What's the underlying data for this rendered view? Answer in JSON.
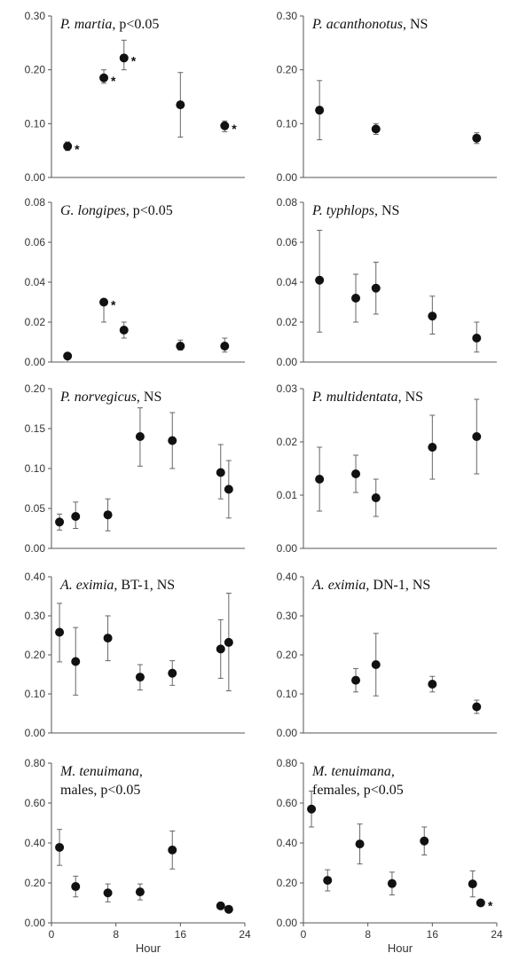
{
  "chart_data": [
    {
      "type": "scatter",
      "title_italic": "P. martia",
      "title_rest": ", p<0.05",
      "ylim": [
        0,
        0.3
      ],
      "yticks": [
        "0.00",
        "0.10",
        "0.20",
        "0.30"
      ],
      "xlim": [
        0,
        24
      ],
      "xticks": [],
      "xlabel": "",
      "points": [
        {
          "x": 2,
          "y": 0.058,
          "lo": 0.05,
          "hi": 0.066,
          "star": true
        },
        {
          "x": 6.5,
          "y": 0.185,
          "lo": 0.175,
          "hi": 0.2,
          "star": true
        },
        {
          "x": 9,
          "y": 0.222,
          "lo": 0.2,
          "hi": 0.255,
          "star": true
        },
        {
          "x": 16,
          "y": 0.135,
          "lo": 0.075,
          "hi": 0.195
        },
        {
          "x": 21.5,
          "y": 0.096,
          "lo": 0.085,
          "hi": 0.105,
          "star": true
        }
      ]
    },
    {
      "type": "scatter",
      "title_italic": "P. acanthonotus",
      "title_rest": ", NS",
      "ylim": [
        0,
        0.3
      ],
      "yticks": [
        "0.00",
        "0.10",
        "0.20",
        "0.30"
      ],
      "xlim": [
        0,
        24
      ],
      "xticks": [],
      "xlabel": "",
      "points": [
        {
          "x": 2,
          "y": 0.125,
          "lo": 0.07,
          "hi": 0.18
        },
        {
          "x": 9,
          "y": 0.09,
          "lo": 0.08,
          "hi": 0.1
        },
        {
          "x": 21.5,
          "y": 0.073,
          "lo": 0.063,
          "hi": 0.083
        }
      ]
    },
    {
      "type": "scatter",
      "title_italic": "G. longipes",
      "title_rest": ", p<0.05",
      "ylim": [
        0,
        0.08
      ],
      "yticks": [
        "0.00",
        "0.02",
        "0.04",
        "0.06",
        "0.08"
      ],
      "xlim": [
        0,
        24
      ],
      "xticks": [],
      "xlabel": "",
      "points": [
        {
          "x": 2,
          "y": 0.003,
          "lo": 0.0,
          "hi": 0.004
        },
        {
          "x": 6.5,
          "y": 0.03,
          "lo": 0.02,
          "hi": 0.031,
          "star": true
        },
        {
          "x": 9,
          "y": 0.016,
          "lo": 0.012,
          "hi": 0.02
        },
        {
          "x": 16,
          "y": 0.008,
          "lo": 0.006,
          "hi": 0.011
        },
        {
          "x": 21.5,
          "y": 0.008,
          "lo": 0.005,
          "hi": 0.012
        }
      ]
    },
    {
      "type": "scatter",
      "title_italic": "P. typhlops",
      "title_rest": ", NS",
      "ylim": [
        0,
        0.08
      ],
      "yticks": [
        "0.00",
        "0.02",
        "0.04",
        "0.06",
        "0.08"
      ],
      "xlim": [
        0,
        24
      ],
      "xticks": [],
      "xlabel": "",
      "points": [
        {
          "x": 2,
          "y": 0.041,
          "lo": 0.015,
          "hi": 0.066
        },
        {
          "x": 6.5,
          "y": 0.032,
          "lo": 0.02,
          "hi": 0.044
        },
        {
          "x": 9,
          "y": 0.037,
          "lo": 0.024,
          "hi": 0.05
        },
        {
          "x": 16,
          "y": 0.023,
          "lo": 0.014,
          "hi": 0.033
        },
        {
          "x": 21.5,
          "y": 0.012,
          "lo": 0.005,
          "hi": 0.02
        }
      ]
    },
    {
      "type": "scatter",
      "title_italic": "P. norvegicus",
      "title_rest": ", NS",
      "ylim": [
        0,
        0.2
      ],
      "yticks": [
        "0.00",
        "0.05",
        "0.10",
        "0.15",
        "0.20"
      ],
      "xlim": [
        0,
        24
      ],
      "xticks": [],
      "xlabel": "",
      "points": [
        {
          "x": 1,
          "y": 0.033,
          "lo": 0.023,
          "hi": 0.043
        },
        {
          "x": 3,
          "y": 0.04,
          "lo": 0.025,
          "hi": 0.058
        },
        {
          "x": 7,
          "y": 0.042,
          "lo": 0.022,
          "hi": 0.062
        },
        {
          "x": 11,
          "y": 0.14,
          "lo": 0.103,
          "hi": 0.176
        },
        {
          "x": 15,
          "y": 0.135,
          "lo": 0.1,
          "hi": 0.17
        },
        {
          "x": 21,
          "y": 0.095,
          "lo": 0.062,
          "hi": 0.13
        },
        {
          "x": 22,
          "y": 0.074,
          "lo": 0.038,
          "hi": 0.11
        }
      ]
    },
    {
      "type": "scatter",
      "title_italic": "P. multidentata",
      "title_rest": ", NS",
      "ylim": [
        0,
        0.03
      ],
      "yticks": [
        "0.00",
        "0.01",
        "0.02",
        "0.03"
      ],
      "xlim": [
        0,
        24
      ],
      "xticks": [],
      "xlabel": "",
      "points": [
        {
          "x": 2,
          "y": 0.013,
          "lo": 0.007,
          "hi": 0.019
        },
        {
          "x": 6.5,
          "y": 0.014,
          "lo": 0.0105,
          "hi": 0.0175
        },
        {
          "x": 9,
          "y": 0.0095,
          "lo": 0.006,
          "hi": 0.013
        },
        {
          "x": 16,
          "y": 0.019,
          "lo": 0.013,
          "hi": 0.025
        },
        {
          "x": 21.5,
          "y": 0.021,
          "lo": 0.014,
          "hi": 0.028
        }
      ]
    },
    {
      "type": "scatter",
      "title_italic": "A. eximia",
      "title_rest": ", BT-1, NS",
      "ylim": [
        0,
        0.4
      ],
      "yticks": [
        "0.00",
        "0.10",
        "0.20",
        "0.30",
        "0.40"
      ],
      "xlim": [
        0,
        24
      ],
      "xticks": [],
      "xlabel": "",
      "points": [
        {
          "x": 1,
          "y": 0.258,
          "lo": 0.182,
          "hi": 0.332
        },
        {
          "x": 3,
          "y": 0.183,
          "lo": 0.097,
          "hi": 0.27
        },
        {
          "x": 7,
          "y": 0.243,
          "lo": 0.185,
          "hi": 0.3
        },
        {
          "x": 11,
          "y": 0.143,
          "lo": 0.11,
          "hi": 0.175
        },
        {
          "x": 15,
          "y": 0.153,
          "lo": 0.122,
          "hi": 0.185
        },
        {
          "x": 21,
          "y": 0.215,
          "lo": 0.14,
          "hi": 0.29
        },
        {
          "x": 22,
          "y": 0.232,
          "lo": 0.108,
          "hi": 0.358
        }
      ]
    },
    {
      "type": "scatter",
      "title_italic": "A. eximia",
      "title_rest": ", DN-1, NS",
      "ylim": [
        0,
        0.4
      ],
      "yticks": [
        "0.00",
        "0.10",
        "0.20",
        "0.30",
        "0.40"
      ],
      "xlim": [
        0,
        24
      ],
      "xticks": [],
      "xlabel": "",
      "points": [
        {
          "x": 6.5,
          "y": 0.135,
          "lo": 0.105,
          "hi": 0.165
        },
        {
          "x": 9,
          "y": 0.175,
          "lo": 0.095,
          "hi": 0.255
        },
        {
          "x": 16,
          "y": 0.125,
          "lo": 0.105,
          "hi": 0.145
        },
        {
          "x": 21.5,
          "y": 0.067,
          "lo": 0.05,
          "hi": 0.084
        }
      ]
    },
    {
      "type": "scatter",
      "title_italic": "M. tenuimana",
      "title_rest": ",",
      "title_line2": "males, p<0.05",
      "ylim": [
        0,
        0.8
      ],
      "yticks": [
        "0.00",
        "0.20",
        "0.40",
        "0.60",
        "0.80"
      ],
      "xlim": [
        0,
        24
      ],
      "xticks": [
        "0",
        "8",
        "16",
        "24"
      ],
      "xlabel": "Hour",
      "points": [
        {
          "x": 1,
          "y": 0.378,
          "lo": 0.288,
          "hi": 0.468
        },
        {
          "x": 3,
          "y": 0.182,
          "lo": 0.13,
          "hi": 0.234
        },
        {
          "x": 7,
          "y": 0.15,
          "lo": 0.105,
          "hi": 0.195
        },
        {
          "x": 11,
          "y": 0.155,
          "lo": 0.115,
          "hi": 0.195
        },
        {
          "x": 15,
          "y": 0.365,
          "lo": 0.27,
          "hi": 0.46
        },
        {
          "x": 21,
          "y": 0.085,
          "lo": 0.07,
          "hi": 0.1
        },
        {
          "x": 22,
          "y": 0.068,
          "lo": 0.055,
          "hi": 0.081
        }
      ]
    },
    {
      "type": "scatter",
      "title_italic": "M. tenuimana",
      "title_rest": ",",
      "title_line2": "females, p<0.05",
      "ylim": [
        0,
        0.8
      ],
      "yticks": [
        "0.00",
        "0.20",
        "0.40",
        "0.60",
        "0.80"
      ],
      "xlim": [
        0,
        24
      ],
      "xticks": [
        "0",
        "8",
        "16",
        "24"
      ],
      "xlabel": "Hour",
      "points": [
        {
          "x": 1,
          "y": 0.57,
          "lo": 0.48,
          "hi": 0.66
        },
        {
          "x": 3,
          "y": 0.213,
          "lo": 0.16,
          "hi": 0.266
        },
        {
          "x": 7,
          "y": 0.395,
          "lo": 0.295,
          "hi": 0.495
        },
        {
          "x": 11,
          "y": 0.197,
          "lo": 0.14,
          "hi": 0.254
        },
        {
          "x": 15,
          "y": 0.41,
          "lo": 0.34,
          "hi": 0.48
        },
        {
          "x": 21,
          "y": 0.195,
          "lo": 0.13,
          "hi": 0.26
        },
        {
          "x": 22,
          "y": 0.1,
          "lo": 0.085,
          "hi": 0.115,
          "star": true
        }
      ]
    }
  ]
}
